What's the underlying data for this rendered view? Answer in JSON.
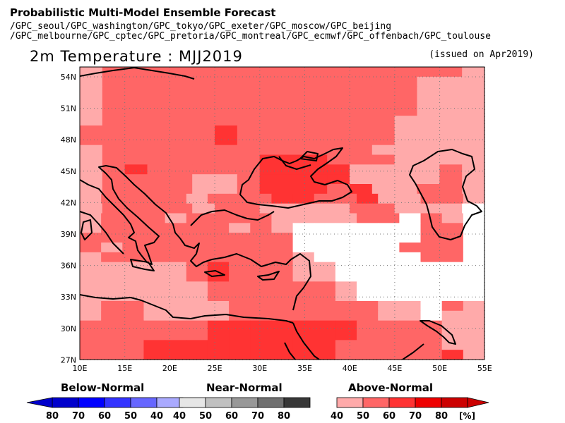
{
  "header": {
    "title": "Probabilistic Multi-Model Ensemble Forecast",
    "models_line1": "/GPC_seoul/GPC_washington/GPC_tokyo/GPC_exeter/GPC_moscow/GPC_beijing",
    "models_line2": "/GPC_melbourne/GPC_cptec/GPC_pretoria/GPC_montreal/GPC_ecmwf/GPC_offenbach/GPC_toulouse",
    "variable_title": "2m Temperature : MJJ2019",
    "issued": "(issued on Apr2019)"
  },
  "axes": {
    "lat_labels": [
      "54N",
      "51N",
      "48N",
      "45N",
      "42N",
      "39N",
      "36N",
      "33N",
      "30N",
      "27N"
    ],
    "lon_labels": [
      "10E",
      "15E",
      "20E",
      "25E",
      "30E",
      "35E",
      "40E",
      "45E",
      "50E",
      "55E"
    ]
  },
  "legend": {
    "below": {
      "title": "Below-Normal",
      "ticks": [
        "80",
        "70",
        "60",
        "50",
        "40"
      ],
      "colors": [
        "#0000cc",
        "#0000ff",
        "#3333ff",
        "#6666ff",
        "#aaaaff"
      ]
    },
    "near": {
      "title": "Near-Normal",
      "ticks": [
        "40",
        "50",
        "60",
        "70",
        "80"
      ],
      "colors": [
        "#e6e6e6",
        "#c0c0c0",
        "#989898",
        "#707070",
        "#383838"
      ]
    },
    "above": {
      "title": "Above-Normal",
      "ticks": [
        "40",
        "50",
        "60",
        "70",
        "80"
      ],
      "colors": [
        "#ffaaaa",
        "#ff6666",
        "#ff3333",
        "#ee0000",
        "#cc0000"
      ]
    },
    "unit": "[%]"
  },
  "colors": {
    "a40": "#ffaaaa",
    "a50": "#ff6666",
    "a60": "#ff3333",
    "a70": "#ee0000",
    "none": "#ffffff"
  }
}
